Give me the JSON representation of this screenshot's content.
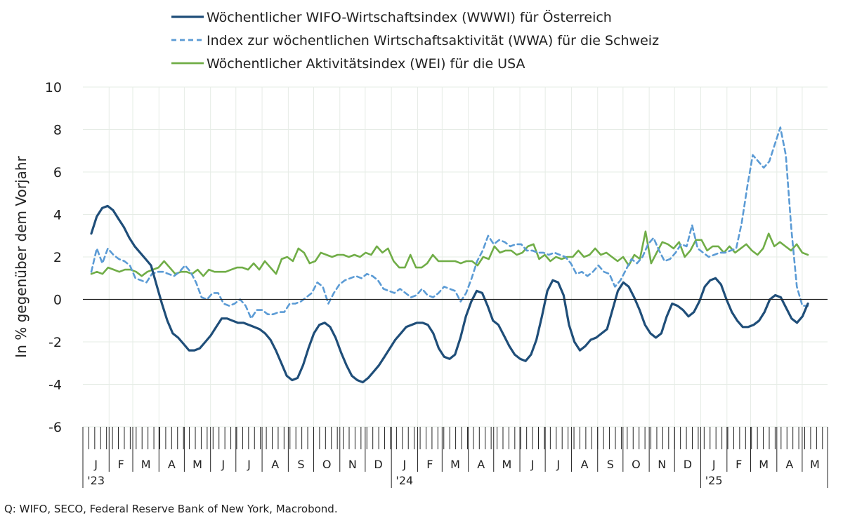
{
  "chart_data": {
    "type": "line",
    "ylabel": "In % gegenüber dem Vorjahr",
    "ylim": [
      -6,
      10
    ],
    "yticks": [
      -6,
      -4,
      -2,
      0,
      2,
      4,
      6,
      8,
      10
    ],
    "x_start": "2023-01-01",
    "x_end": "2025-05-31",
    "x_unit": "Woche",
    "months": [
      "J",
      "F",
      "M",
      "A",
      "M",
      "J",
      "J",
      "A",
      "S",
      "O",
      "N",
      "D",
      "J",
      "F",
      "M",
      "A",
      "M",
      "J",
      "J",
      "A",
      "S",
      "O",
      "N",
      "D",
      "J",
      "F",
      "M",
      "A",
      "M"
    ],
    "year_labels": [
      {
        "month_index": 0,
        "label": "'23"
      },
      {
        "month_index": 12,
        "label": "'24"
      },
      {
        "month_index": 24,
        "label": "'25"
      }
    ],
    "legend_position": "top",
    "grid": true,
    "series": [
      {
        "name": "Wöchentlicher WIFO-Wirtschaftsindex (WWWI) für Österreich",
        "color": "#1f4e79",
        "style": "solid",
        "values": [
          3.1,
          3.9,
          4.3,
          4.4,
          4.2,
          3.8,
          3.4,
          2.9,
          2.5,
          2.2,
          1.9,
          1.6,
          0.7,
          -0.2,
          -1.0,
          -1.6,
          -1.8,
          -2.1,
          -2.4,
          -2.4,
          -2.3,
          -2.0,
          -1.7,
          -1.3,
          -0.9,
          -0.9,
          -1.0,
          -1.1,
          -1.1,
          -1.2,
          -1.3,
          -1.4,
          -1.6,
          -1.9,
          -2.4,
          -3.0,
          -3.6,
          -3.8,
          -3.7,
          -3.1,
          -2.3,
          -1.6,
          -1.2,
          -1.1,
          -1.3,
          -1.8,
          -2.5,
          -3.1,
          -3.6,
          -3.8,
          -3.9,
          -3.7,
          -3.4,
          -3.1,
          -2.7,
          -2.3,
          -1.9,
          -1.6,
          -1.3,
          -1.2,
          -1.1,
          -1.1,
          -1.2,
          -1.6,
          -2.3,
          -2.7,
          -2.8,
          -2.6,
          -1.8,
          -0.8,
          -0.1,
          0.4,
          0.3,
          -0.3,
          -1.0,
          -1.2,
          -1.7,
          -2.2,
          -2.6,
          -2.8,
          -2.9,
          -2.6,
          -1.9,
          -0.8,
          0.4,
          0.9,
          0.8,
          0.2,
          -1.2,
          -2.0,
          -2.4,
          -2.2,
          -1.9,
          -1.8,
          -1.6,
          -1.4,
          -0.5,
          0.4,
          0.8,
          0.6,
          0.1,
          -0.5,
          -1.2,
          -1.6,
          -1.8,
          -1.6,
          -0.8,
          -0.2,
          -0.3,
          -0.5,
          -0.8,
          -0.6,
          -0.1,
          0.6,
          0.9,
          1.0,
          0.7,
          0.0,
          -0.6,
          -1.0,
          -1.3,
          -1.3,
          -1.2,
          -1.0,
          -0.6,
          0.0,
          0.2,
          0.1,
          -0.4,
          -0.9,
          -1.1,
          -0.8,
          -0.2
        ]
      },
      {
        "name": "Index zur wöchentlichen Wirtschaftsaktivität (WWA) für die Schweiz",
        "color": "#5b9bd5",
        "style": "dashed",
        "values": [
          1.3,
          2.4,
          1.7,
          2.4,
          2.1,
          1.9,
          1.8,
          1.6,
          1.0,
          0.9,
          0.8,
          1.2,
          1.3,
          1.3,
          1.2,
          1.1,
          1.3,
          1.6,
          1.3,
          0.8,
          0.1,
          0.0,
          0.3,
          0.3,
          -0.2,
          -0.3,
          -0.2,
          0.0,
          -0.3,
          -0.9,
          -0.5,
          -0.5,
          -0.7,
          -0.7,
          -0.6,
          -0.6,
          -0.2,
          -0.2,
          -0.1,
          0.1,
          0.3,
          0.8,
          0.6,
          -0.2,
          0.3,
          0.7,
          0.9,
          1.0,
          1.1,
          1.0,
          1.2,
          1.1,
          0.9,
          0.5,
          0.4,
          0.3,
          0.5,
          0.3,
          0.1,
          0.2,
          0.5,
          0.2,
          0.1,
          0.3,
          0.6,
          0.5,
          0.4,
          -0.1,
          0.3,
          1.0,
          1.8,
          2.3,
          3.0,
          2.6,
          2.8,
          2.7,
          2.5,
          2.6,
          2.6,
          2.3,
          2.3,
          2.2,
          2.2,
          2.1,
          2.2,
          2.1,
          2.0,
          1.7,
          1.2,
          1.3,
          1.1,
          1.3,
          1.6,
          1.3,
          1.2,
          0.6,
          0.9,
          1.4,
          1.9,
          1.7,
          2.0,
          2.6,
          2.9,
          2.3,
          1.8,
          1.9,
          2.2,
          2.6,
          2.5,
          3.5,
          2.4,
          2.2,
          2.0,
          2.1,
          2.2,
          2.2,
          2.3,
          2.4,
          3.6,
          5.3,
          6.8,
          6.5,
          6.2,
          6.5,
          7.3,
          8.1,
          6.8,
          3.3,
          0.6,
          -0.3,
          -0.3
        ]
      },
      {
        "name": "Wöchentlicher Aktivitätsindex (WEI) für die USA",
        "color": "#70ad47",
        "style": "solid",
        "values": [
          1.2,
          1.3,
          1.2,
          1.5,
          1.4,
          1.3,
          1.4,
          1.4,
          1.3,
          1.1,
          1.3,
          1.4,
          1.5,
          1.8,
          1.5,
          1.2,
          1.3,
          1.3,
          1.2,
          1.4,
          1.1,
          1.4,
          1.3,
          1.3,
          1.3,
          1.4,
          1.5,
          1.5,
          1.4,
          1.7,
          1.4,
          1.8,
          1.5,
          1.2,
          1.9,
          2.0,
          1.8,
          2.4,
          2.2,
          1.7,
          1.8,
          2.2,
          2.1,
          2.0,
          2.1,
          2.1,
          2.0,
          2.1,
          2.0,
          2.2,
          2.1,
          2.5,
          2.2,
          2.4,
          1.8,
          1.5,
          1.5,
          2.1,
          1.5,
          1.5,
          1.7,
          2.1,
          1.8,
          1.8,
          1.8,
          1.8,
          1.7,
          1.8,
          1.8,
          1.6,
          2.0,
          1.9,
          2.5,
          2.2,
          2.3,
          2.3,
          2.1,
          2.2,
          2.5,
          2.6,
          1.9,
          2.1,
          1.8,
          2.0,
          1.9,
          2.0,
          2.0,
          2.3,
          2.0,
          2.1,
          2.4,
          2.1,
          2.2,
          2.0,
          1.8,
          2.0,
          1.6,
          2.1,
          1.9,
          3.2,
          1.7,
          2.2,
          2.7,
          2.6,
          2.4,
          2.7,
          2.0,
          2.3,
          2.8,
          2.8,
          2.3,
          2.5,
          2.5,
          2.2,
          2.5,
          2.2,
          2.4,
          2.6,
          2.3,
          2.1,
          2.4,
          3.1,
          2.5,
          2.7,
          2.5,
          2.3,
          2.6,
          2.2,
          2.1
        ]
      }
    ]
  },
  "source": "Q: WIFO, SECO, Federal Reserve Bank of New York, Macrobond."
}
